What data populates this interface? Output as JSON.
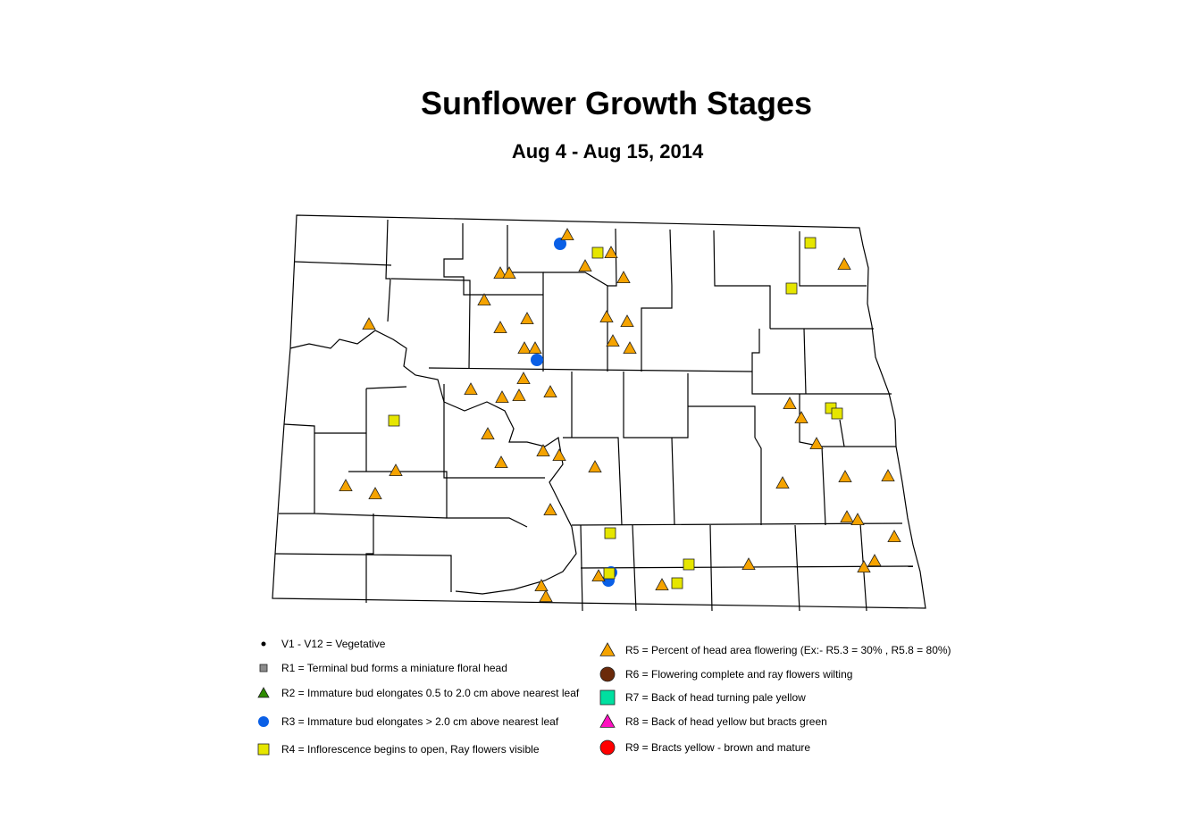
{
  "title": "Sunflower Growth Stages",
  "subtitle": "Aug 4 - Aug 15, 2014",
  "colors": {
    "V": "#000000",
    "R1": "#8c8c8c",
    "R2": "#2e8b00",
    "R3": "#0a5fe6",
    "R4": "#e6e600",
    "R5": "#f5a300",
    "R6": "#6b2a0a",
    "R7": "#00e0a0",
    "R8": "#ff10c0",
    "R9": "#ff0000"
  },
  "legend": [
    {
      "stage": "V",
      "symbol": "dot",
      "label": "V1 - V12 = Vegetative"
    },
    {
      "stage": "R1",
      "symbol": "square",
      "label": "R1 = Terminal bud forms a miniature floral head"
    },
    {
      "stage": "R2",
      "symbol": "triangle",
      "label": "R2 = Immature bud elongates 0.5 to 2.0 cm above nearest leaf"
    },
    {
      "stage": "R3",
      "symbol": "circle",
      "label": "R3 = Immature bud elongates > 2.0 cm above nearest leaf"
    },
    {
      "stage": "R4",
      "symbol": "square",
      "label": "R4 = Inflorescence begins to open, Ray flowers visible"
    },
    {
      "stage": "R5",
      "symbol": "triangle",
      "label": "R5 = Percent of head area flowering (Ex:- R5.3 = 30% , R5.8 = 80%)"
    },
    {
      "stage": "R6",
      "symbol": "circle",
      "label": "R6 = Flowering complete and ray flowers wilting"
    },
    {
      "stage": "R7",
      "symbol": "square",
      "label": "R7 = Back of head turning pale yellow"
    },
    {
      "stage": "R8",
      "symbol": "triangle",
      "label": "R8 = Back of head yellow but bracts green"
    },
    {
      "stage": "R9",
      "symbol": "circle",
      "label": "R9 = Bracts yellow - brown and mature"
    }
  ],
  "observations": {
    "R3": 4,
    "R4": 10,
    "R5": 47
  }
}
